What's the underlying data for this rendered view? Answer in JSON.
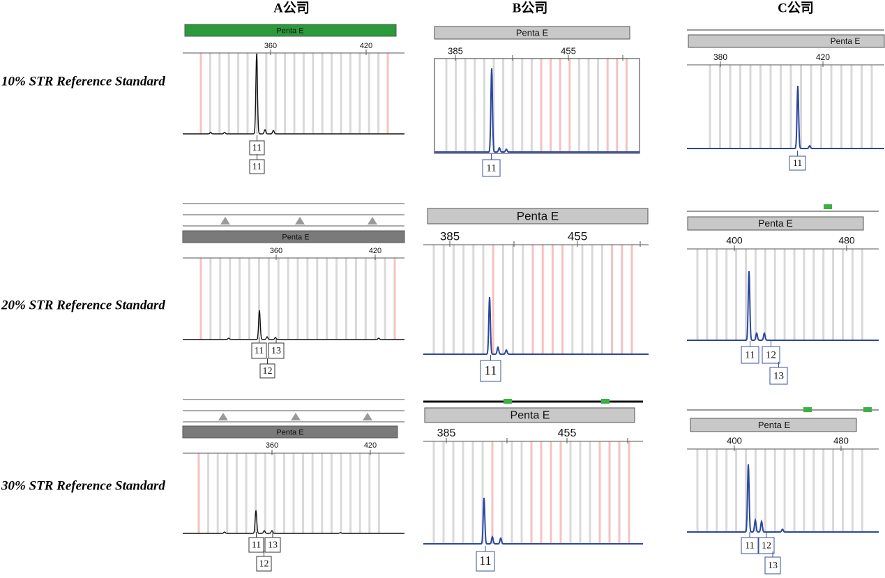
{
  "columns": [
    "A公司",
    "B公司",
    "C公司"
  ],
  "rows": [
    {
      "label": "10% STR Reference Standard",
      "panels": [
        {
          "locus": "Penta E",
          "ticks": [
            "360",
            "420"
          ],
          "alleles": [
            "11",
            "11"
          ]
        },
        {
          "locus": "Penta E",
          "ticks": [
            "385",
            "455"
          ],
          "alleles": [
            "11"
          ]
        },
        {
          "locus": "Penta E",
          "ticks": [
            "380",
            "420"
          ],
          "alleles": [
            "11"
          ]
        }
      ]
    },
    {
      "label": "20% STR Reference Standard",
      "panels": [
        {
          "locus": "Penta E",
          "ticks": [
            "360",
            "420"
          ],
          "alleles": [
            "11",
            "13",
            "12"
          ]
        },
        {
          "locus": "Penta E",
          "ticks": [
            "385",
            "455"
          ],
          "alleles": [
            "11"
          ]
        },
        {
          "locus": "Penta E",
          "ticks": [
            "400",
            "480"
          ],
          "alleles": [
            "11",
            "12",
            "13"
          ]
        }
      ]
    },
    {
      "label": "30% STR Reference Standard",
      "panels": [
        {
          "locus": "Penta E",
          "ticks": [
            "360",
            "420"
          ],
          "alleles": [
            "11",
            "13",
            "12"
          ]
        },
        {
          "locus": "Penta E",
          "ticks": [
            "385",
            "455"
          ],
          "alleles": [
            "11"
          ]
        },
        {
          "locus": "Penta E",
          "ticks": [
            "400",
            "480"
          ],
          "alleles": [
            "11",
            "12",
            "13"
          ]
        }
      ]
    }
  ]
}
